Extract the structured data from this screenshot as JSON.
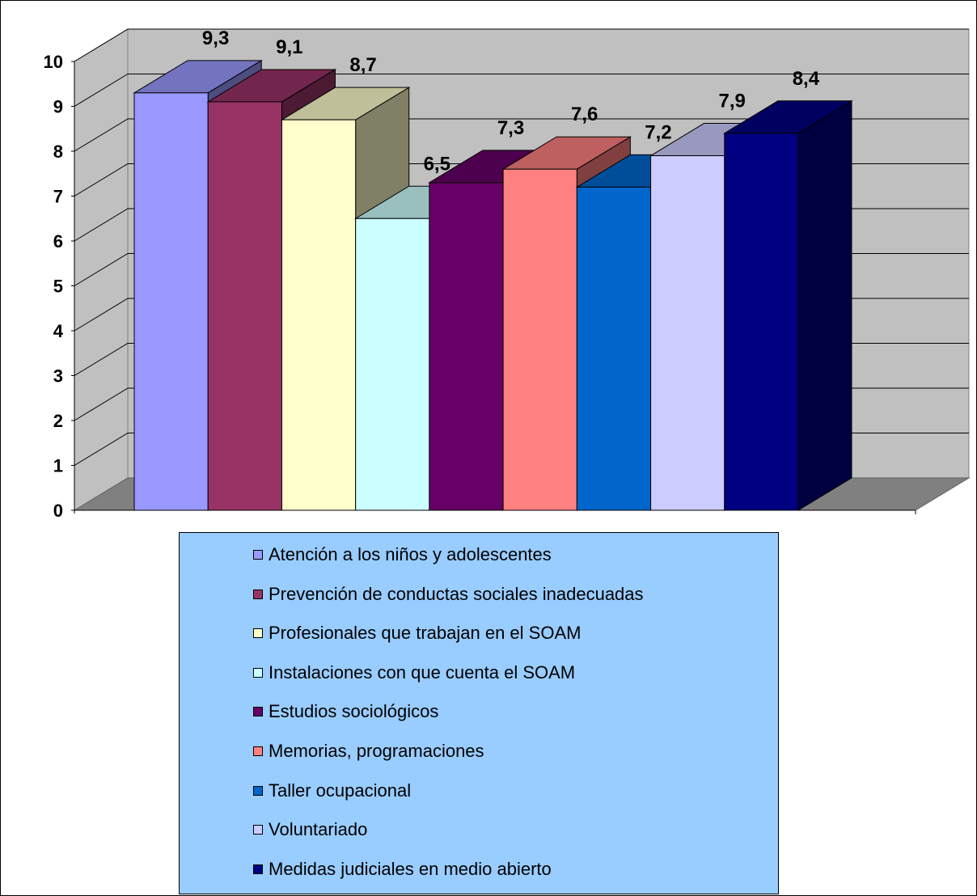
{
  "chart_data": {
    "type": "bar",
    "title": "",
    "xlabel": "",
    "ylabel": "",
    "ylim": [
      0,
      10
    ],
    "yticks": [
      "0",
      "1",
      "2",
      "3",
      "4",
      "5",
      "6",
      "7",
      "8",
      "9",
      "10"
    ],
    "grid": true,
    "legend_position": "bottom",
    "series": [
      {
        "name": "Atención a los niños y adolescentes",
        "value": 9.3,
        "label": "9,3",
        "color": "#9999ff"
      },
      {
        "name": "Prevención de conductas sociales inadecuadas",
        "value": 9.1,
        "label": "9,1",
        "color": "#993366"
      },
      {
        "name": "Profesionales que trabajan en el SOAM",
        "value": 8.7,
        "label": "8,7",
        "color": "#ffffcc"
      },
      {
        "name": "Instalaciones con que cuenta el SOAM",
        "value": 6.5,
        "label": "6,5",
        "color": "#ccffff"
      },
      {
        "name": "Estudios sociológicos",
        "value": 7.3,
        "label": "7,3",
        "color": "#660066"
      },
      {
        "name": "Memorias, programaciones",
        "value": 7.6,
        "label": "7,6",
        "color": "#ff8080"
      },
      {
        "name": "Taller ocupacional",
        "value": 7.2,
        "label": "7,2",
        "color": "#0066cc"
      },
      {
        "name": "Voluntariado",
        "value": 7.9,
        "label": "7,9",
        "color": "#ccccff"
      },
      {
        "name": "Medidas judiciales en medio abierto",
        "value": 8.4,
        "label": "8,4",
        "color": "#000080"
      }
    ]
  }
}
